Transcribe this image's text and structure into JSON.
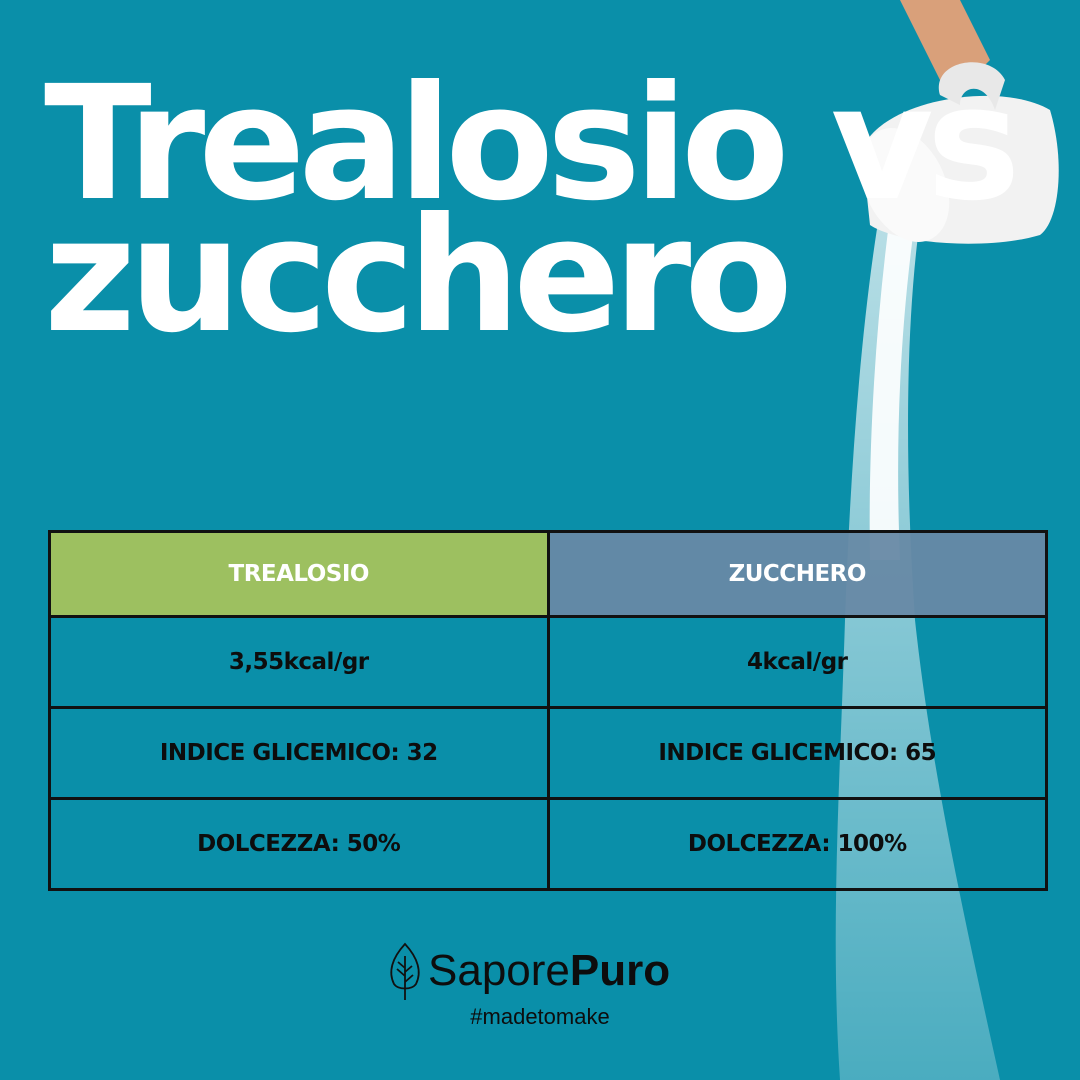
{
  "title": {
    "line1": "Trealosio vs",
    "line2": "zucchero"
  },
  "table": {
    "headers": [
      "TREALOSIO",
      "ZUCCHERO"
    ],
    "header_colors": [
      "#9dc060",
      "#6789a5"
    ],
    "rows": [
      [
        "3,55kcal/gr",
        "4kcal/gr"
      ],
      [
        "INDICE GLICEMICO: 32",
        "INDICE GLICEMICO: 65"
      ],
      [
        "DOLCEZZA: 50%",
        "DOLCEZZA: 100%"
      ]
    ]
  },
  "brand": {
    "name_light": "Sapore",
    "name_bold": "Puro",
    "tagline": "#madetomake",
    "icon": "leaf-icon"
  },
  "colors": {
    "background": "#0a8fa9"
  }
}
